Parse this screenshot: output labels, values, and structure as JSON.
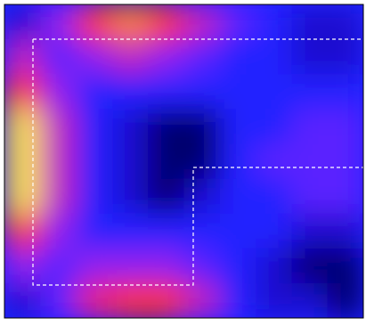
{
  "chart_data": {
    "type": "contour",
    "levels": [
      0,
      0.1,
      0.2,
      0.3,
      0.4,
      0.5,
      0.6,
      0.7,
      0.8,
      0.9
    ],
    "colors": [
      "#000070",
      "#1a10d0",
      "#2020ff",
      "#5a20ff",
      "#9020f0",
      "#c020c0",
      "#e82080",
      "#ff3020",
      "#ff8000",
      "#ffe040"
    ],
    "z": [
      [
        0.15,
        0.45,
        0.7,
        0.8,
        0.75,
        0.55,
        0.3,
        0.25,
        0.15,
        0.15
      ],
      [
        0.5,
        0.35,
        0.45,
        0.5,
        0.45,
        0.35,
        0.25,
        0.2,
        0.12,
        0.18
      ],
      [
        0.7,
        0.4,
        0.25,
        0.22,
        0.2,
        0.2,
        0.22,
        0.25,
        0.22,
        0.22
      ],
      [
        0.9,
        0.5,
        0.25,
        0.12,
        0.05,
        0.08,
        0.2,
        0.28,
        0.3,
        0.35
      ],
      [
        0.97,
        0.55,
        0.25,
        0.1,
        0.03,
        0.05,
        0.2,
        0.3,
        0.35,
        0.38
      ],
      [
        0.9,
        0.5,
        0.25,
        0.12,
        0.06,
        0.1,
        0.2,
        0.28,
        0.3,
        0.3
      ],
      [
        0.7,
        0.4,
        0.28,
        0.25,
        0.22,
        0.22,
        0.22,
        0.2,
        0.15,
        0.12
      ],
      [
        0.4,
        0.35,
        0.4,
        0.45,
        0.42,
        0.32,
        0.22,
        0.15,
        0.08,
        0.05
      ],
      [
        0.15,
        0.3,
        0.6,
        0.75,
        0.7,
        0.5,
        0.28,
        0.18,
        0.1,
        0.08
      ]
    ]
  }
}
